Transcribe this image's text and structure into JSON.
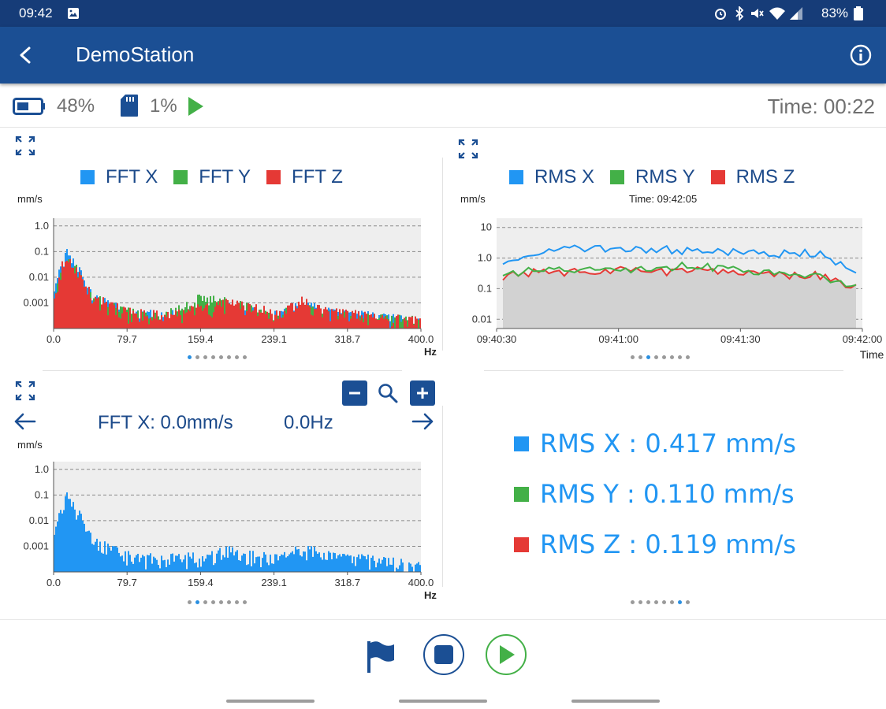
{
  "status_bar": {
    "time": "09:42",
    "battery": "83%",
    "image_icon": "image-icon",
    "alarm_icon": "alarm-icon",
    "bluetooth_icon": "bluetooth-icon",
    "mute_icon": "mute-icon",
    "wifi_icon": "wifi-icon",
    "signal_icon": "signal-icon",
    "battery_icon": "battery-icon"
  },
  "app_bar": {
    "title": "DemoStation",
    "back_icon": "back-arrow-icon",
    "info_icon": "info-icon"
  },
  "info_bar": {
    "battery_level": "48%",
    "storage_level": "1%",
    "elapsed_label": "Time: 00:22"
  },
  "colors": {
    "x": "#2196f3",
    "y": "#43b047",
    "z": "#e53935",
    "primary": "#1b4f94"
  },
  "fft_chart": {
    "legend": [
      "FFT X",
      "FFT Y",
      "FFT Z"
    ],
    "ylabel": "mm/s",
    "xlabel": "Hz",
    "y_ticks": [
      "1.0",
      "0.1",
      "0.01",
      "0.001"
    ],
    "x_ticks": [
      "0.0",
      "79.7",
      "159.4",
      "239.1",
      "318.7",
      "400.0"
    ]
  },
  "rms_chart": {
    "legend": [
      "RMS X",
      "RMS Y",
      "RMS Z"
    ],
    "ylabel": "mm/s",
    "subtitle": "Time: 09:42:05",
    "xlabel": "Time",
    "y_ticks": [
      "10",
      "1.0",
      "0.1",
      "0.01"
    ],
    "x_ticks": [
      "09:40:30",
      "09:41:00",
      "09:41:30",
      "09:42:00"
    ]
  },
  "fft_detail": {
    "readout_value": "FFT X: 0.0mm/s",
    "readout_freq": "0.0Hz",
    "ylabel": "mm/s",
    "xlabel": "Hz",
    "y_ticks": [
      "1.0",
      "0.1",
      "0.01",
      "0.001"
    ],
    "x_ticks": [
      "0.0",
      "79.7",
      "159.4",
      "239.1",
      "318.7",
      "400.0"
    ]
  },
  "rms_values": [
    {
      "label": "RMS X : 0.417 mm/s"
    },
    {
      "label": "RMS Y : 0.110 mm/s"
    },
    {
      "label": "RMS Z : 0.119 mm/s"
    }
  ],
  "chart_data": [
    {
      "type": "bar",
      "x_scale": "linear",
      "y_scale": "log",
      "xlim": [
        0,
        400
      ],
      "ylim": [
        0.0001,
        2
      ],
      "legend_placement": "top-center",
      "grid": true,
      "series": [
        {
          "name": "FFT X",
          "color": "#2196f3",
          "x": [
            0,
            8,
            16,
            24,
            30,
            40,
            60,
            80,
            120,
            160,
            190,
            240,
            270,
            300,
            340,
            380,
            400
          ],
          "values": [
            0.002,
            0.04,
            0.1,
            0.03,
            0.01,
            0.002,
            0.0008,
            0.0004,
            0.0003,
            0.0004,
            0.0007,
            0.0003,
            0.0008,
            0.0004,
            0.0003,
            0.0002,
            0.0002
          ]
        },
        {
          "name": "FFT Y",
          "color": "#43b047",
          "x": [
            0,
            8,
            16,
            24,
            30,
            40,
            60,
            80,
            120,
            160,
            190,
            240,
            270,
            300,
            340,
            380,
            400
          ],
          "values": [
            0.001,
            0.02,
            0.05,
            0.02,
            0.008,
            0.002,
            0.0007,
            0.0004,
            0.0003,
            0.0015,
            0.001,
            0.0003,
            0.0008,
            0.0003,
            0.0003,
            0.0002,
            0.0002
          ]
        },
        {
          "name": "FFT Z",
          "color": "#e53935",
          "x": [
            0,
            8,
            16,
            24,
            30,
            40,
            60,
            80,
            120,
            160,
            190,
            240,
            270,
            300,
            340,
            380,
            400
          ],
          "values": [
            0.0015,
            0.025,
            0.04,
            0.02,
            0.008,
            0.002,
            0.0008,
            0.0004,
            0.0003,
            0.0006,
            0.0009,
            0.0004,
            0.0012,
            0.0004,
            0.0003,
            0.0002,
            0.0002
          ]
        }
      ]
    },
    {
      "type": "line",
      "x_scale": "time",
      "y_scale": "log",
      "xlim": [
        "09:40:30",
        "09:42:00"
      ],
      "ylim": [
        0.005,
        20
      ],
      "legend_placement": "top-center",
      "grid": true,
      "x": [
        "09:40:30",
        "09:40:40",
        "09:40:50",
        "09:41:00",
        "09:41:10",
        "09:41:20",
        "09:41:30",
        "09:41:40",
        "09:41:50",
        "09:42:00"
      ],
      "series": [
        {
          "name": "RMS X",
          "color": "#2196f3",
          "values": [
            0.9,
            1.6,
            2.2,
            1.8,
            2.0,
            1.7,
            1.6,
            1.4,
            1.5,
            0.4
          ]
        },
        {
          "name": "RMS Y",
          "color": "#43b047",
          "values": [
            0.3,
            0.5,
            0.4,
            0.4,
            0.5,
            0.6,
            0.4,
            0.3,
            0.3,
            0.11
          ]
        },
        {
          "name": "RMS Z",
          "color": "#e53935",
          "values": [
            0.25,
            0.4,
            0.35,
            0.4,
            0.35,
            0.4,
            0.35,
            0.3,
            0.3,
            0.12
          ]
        }
      ]
    },
    {
      "type": "bar",
      "x_scale": "linear",
      "y_scale": "log",
      "xlim": [
        0,
        400
      ],
      "ylim": [
        0.0001,
        2
      ],
      "grid": true,
      "series": [
        {
          "name": "FFT X",
          "color": "#2196f3",
          "x": [
            0,
            8,
            16,
            24,
            30,
            40,
            60,
            80,
            120,
            160,
            190,
            240,
            270,
            300,
            340,
            380,
            400
          ],
          "values": [
            0.002,
            0.04,
            0.1,
            0.03,
            0.01,
            0.002,
            0.0008,
            0.0004,
            0.0003,
            0.0004,
            0.0007,
            0.0003,
            0.0008,
            0.0004,
            0.0003,
            0.0002,
            0.0002
          ]
        }
      ]
    }
  ],
  "bottom": {
    "flag_icon": "flag-icon",
    "stop_icon": "stop-icon",
    "play_icon": "play-icon"
  }
}
